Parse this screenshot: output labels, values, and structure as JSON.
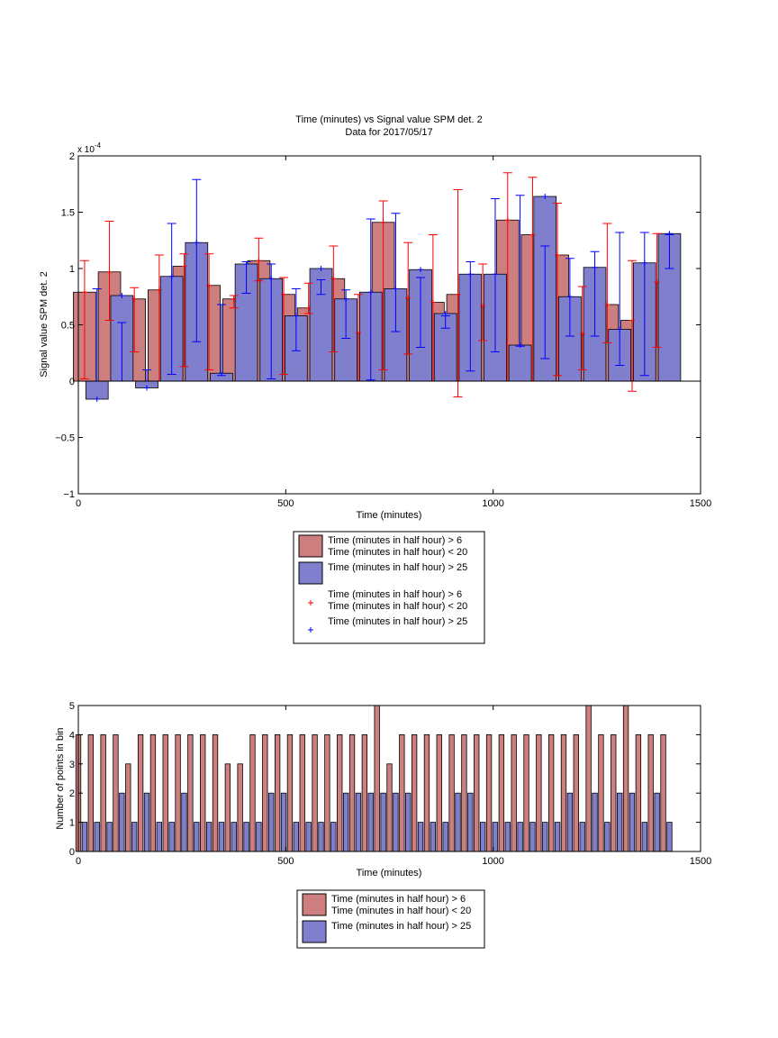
{
  "chart_data": [
    {
      "type": "bar",
      "title": "Time (minutes) vs Signal value SPM det. 2",
      "subtitle": "Data for 2017/05/17",
      "xlabel": "Time (minutes)",
      "ylabel": "Signal value SPM det. 2",
      "exponent_label": "x 10",
      "exponent_power": "-4",
      "xlim": [
        0,
        1500
      ],
      "ylim": [
        -1,
        2
      ],
      "xticks": [
        "0",
        "500",
        "1000",
        "1500"
      ],
      "yticks": [
        "−1",
        "−0.5",
        "0",
        "0.5",
        "1",
        "1.5",
        "2"
      ],
      "grid": false,
      "legend_position": "below",
      "legend": [
        {
          "line1": "Time (minutes in half hour) > 6",
          "line2": "Time (minutes in half hour) < 20",
          "kind": "patch",
          "color": "#cd7f7f"
        },
        {
          "line1": "Time (minutes in half hour) > 25",
          "line2": "",
          "kind": "patch",
          "color": "#7f7fcd"
        },
        {
          "line1": "Time (minutes in half hour) > 6",
          "line2": "Time (minutes in half hour) < 20",
          "kind": "marker",
          "color": "#ff0000"
        },
        {
          "line1": "Time (minutes in half hour) > 25",
          "line2": "",
          "kind": "marker",
          "color": "#0000ff"
        }
      ],
      "series": [
        {
          "color": "#cd7f7f",
          "err_color": "#ff0000",
          "x": [
            15,
            75,
            135,
            195,
            255,
            315,
            375,
            435,
            495,
            555,
            615,
            675,
            735,
            795,
            855,
            915,
            975,
            1035,
            1095,
            1155,
            1215,
            1275,
            1335,
            1395
          ],
          "values": [
            0.79,
            0.97,
            0.73,
            0.81,
            1.02,
            0.85,
            0.73,
            1.07,
            0.77,
            0.65,
            0.91,
            0.43,
            1.41,
            0.74,
            0.7,
            0.77,
            0.67,
            1.43,
            1.3,
            1.12,
            0.42,
            0.68,
            0.54,
            0.88
          ],
          "err_low": [
            0.02,
            0.54,
            0.26,
            0.0,
            0.13,
            0.1,
            0.65,
            0.89,
            0.06,
            0.6,
            0.26,
            0.0,
            0.1,
            0.24,
            0.0,
            -0.14,
            0.36,
            0.0,
            0.0,
            0.05,
            0.1,
            0.34,
            -0.09,
            0.3
          ],
          "err_high": [
            1.07,
            1.42,
            0.83,
            1.12,
            1.13,
            1.13,
            0.76,
            1.27,
            0.92,
            0.87,
            1.2,
            0.77,
            1.6,
            1.23,
            1.3,
            1.7,
            1.04,
            1.85,
            1.81,
            1.58,
            0.84,
            1.4,
            1.07,
            1.31
          ]
        },
        {
          "color": "#7f7fcd",
          "err_color": "#0000ff",
          "x": [
            45,
            105,
            165,
            225,
            285,
            345,
            405,
            465,
            525,
            585,
            645,
            705,
            765,
            825,
            885,
            945,
            1005,
            1065,
            1125,
            1185,
            1245,
            1305,
            1365,
            1425
          ],
          "values": [
            -0.16,
            0.76,
            -0.06,
            0.93,
            1.23,
            0.07,
            1.04,
            0.91,
            0.58,
            1.0,
            0.73,
            0.79,
            0.82,
            0.99,
            0.6,
            0.95,
            0.95,
            0.32,
            1.64,
            0.75,
            1.01,
            0.46,
            1.05,
            1.31
          ],
          "err_low": [
            0.0,
            0.0,
            0.0,
            0.06,
            0.35,
            0.05,
            0.78,
            0.02,
            0.27,
            0.9,
            0.38,
            0.01,
            0.44,
            0.3,
            0.47,
            0.09,
            0.26,
            0.31,
            0.2,
            0.4,
            0.4,
            0.14,
            0.05,
            1.0
          ],
          "err_high": [
            0.82,
            0.52,
            0.1,
            1.4,
            1.79,
            0.68,
            1.06,
            1.04,
            0.82,
            0.77,
            0.81,
            1.44,
            1.49,
            0.92,
            0.58,
            1.06,
            1.62,
            1.65,
            1.2,
            1.09,
            1.15,
            1.32,
            1.32,
            1.3
          ]
        }
      ]
    },
    {
      "type": "bar",
      "xlabel": "Time (minutes)",
      "ylabel": "Number of points in bin",
      "xlim": [
        0,
        1500
      ],
      "ylim": [
        0,
        5
      ],
      "xticks": [
        "0",
        "500",
        "1000",
        "1500"
      ],
      "yticks": [
        "0",
        "1",
        "2",
        "3",
        "4",
        "5"
      ],
      "grid": false,
      "legend_position": "below",
      "legend": [
        {
          "line1": "Time (minutes in half hour) > 6",
          "line2": "Time (minutes in half hour) < 20",
          "kind": "patch",
          "color": "#cd7f7f"
        },
        {
          "line1": "Time (minutes in half hour) > 25",
          "line2": "",
          "kind": "patch",
          "color": "#7f7fcd"
        }
      ],
      "series": [
        {
          "color": "#cd7f7f",
          "x": [
            0,
            30,
            60,
            90,
            120,
            150,
            180,
            210,
            240,
            270,
            300,
            330,
            360,
            390,
            420,
            450,
            480,
            510,
            540,
            570,
            600,
            630,
            660,
            690,
            720,
            750,
            780,
            810,
            840,
            870,
            900,
            930,
            960,
            990,
            1020,
            1050,
            1080,
            1110,
            1140,
            1170,
            1200,
            1230,
            1260,
            1290,
            1320,
            1350,
            1380,
            1410
          ],
          "values": [
            4,
            4,
            4,
            4,
            3,
            4,
            4,
            4,
            4,
            4,
            4,
            4,
            3,
            3,
            4,
            4,
            4,
            4,
            4,
            4,
            4,
            4,
            4,
            4,
            5,
            3,
            4,
            4,
            4,
            4,
            4,
            4,
            4,
            4,
            4,
            4,
            4,
            4,
            4,
            4,
            4,
            5,
            4,
            4,
            5,
            4,
            4,
            4
          ]
        },
        {
          "color": "#7f7fcd",
          "x": [
            15,
            45,
            75,
            105,
            135,
            165,
            195,
            225,
            255,
            285,
            315,
            345,
            375,
            405,
            435,
            465,
            495,
            525,
            555,
            585,
            615,
            645,
            675,
            705,
            735,
            765,
            795,
            825,
            855,
            885,
            915,
            945,
            975,
            1005,
            1035,
            1065,
            1095,
            1125,
            1155,
            1185,
            1215,
            1245,
            1275,
            1305,
            1335,
            1365,
            1395,
            1425
          ],
          "values": [
            1,
            1,
            1,
            2,
            1,
            2,
            1,
            1,
            2,
            1,
            1,
            1,
            1,
            1,
            1,
            2,
            2,
            1,
            1,
            1,
            1,
            2,
            2,
            2,
            2,
            2,
            2,
            1,
            1,
            1,
            2,
            2,
            1,
            1,
            1,
            1,
            1,
            1,
            1,
            2,
            1,
            2,
            1,
            2,
            2,
            1,
            2,
            1
          ]
        }
      ]
    }
  ]
}
